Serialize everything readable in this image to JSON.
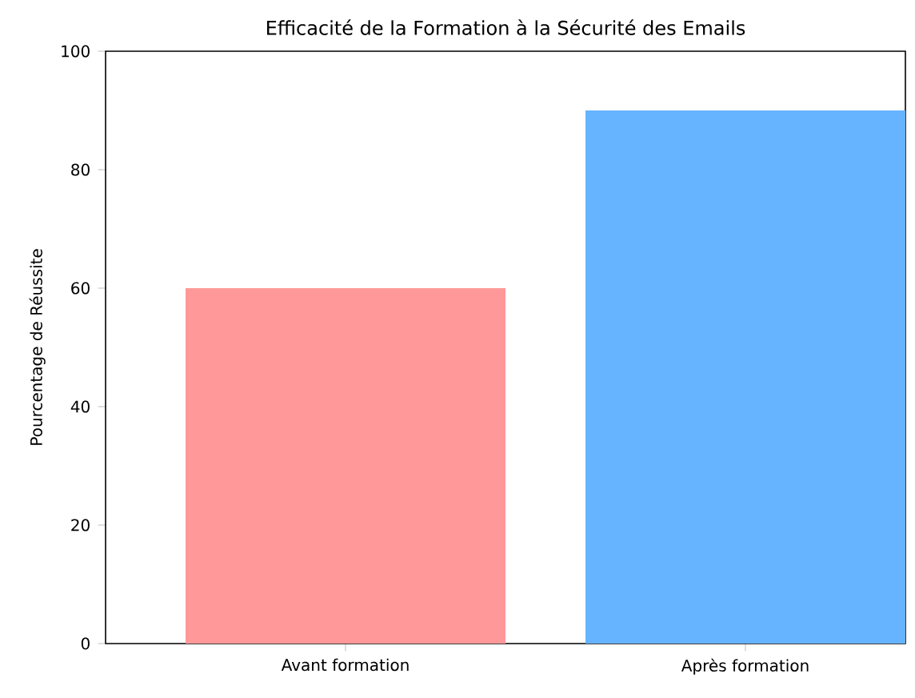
{
  "chart_data": {
    "type": "bar",
    "title": "Efficacité de la Formation à la Sécurité des Emails",
    "ylabel": "Pourcentage de Réussite",
    "categories": [
      "Avant formation",
      "Après formation"
    ],
    "values": [
      60,
      90
    ],
    "colors": [
      "#ff9999",
      "#66b3ff"
    ],
    "ylim": [
      0,
      100
    ],
    "yticks": [
      0,
      20,
      40,
      60,
      80,
      100
    ]
  }
}
